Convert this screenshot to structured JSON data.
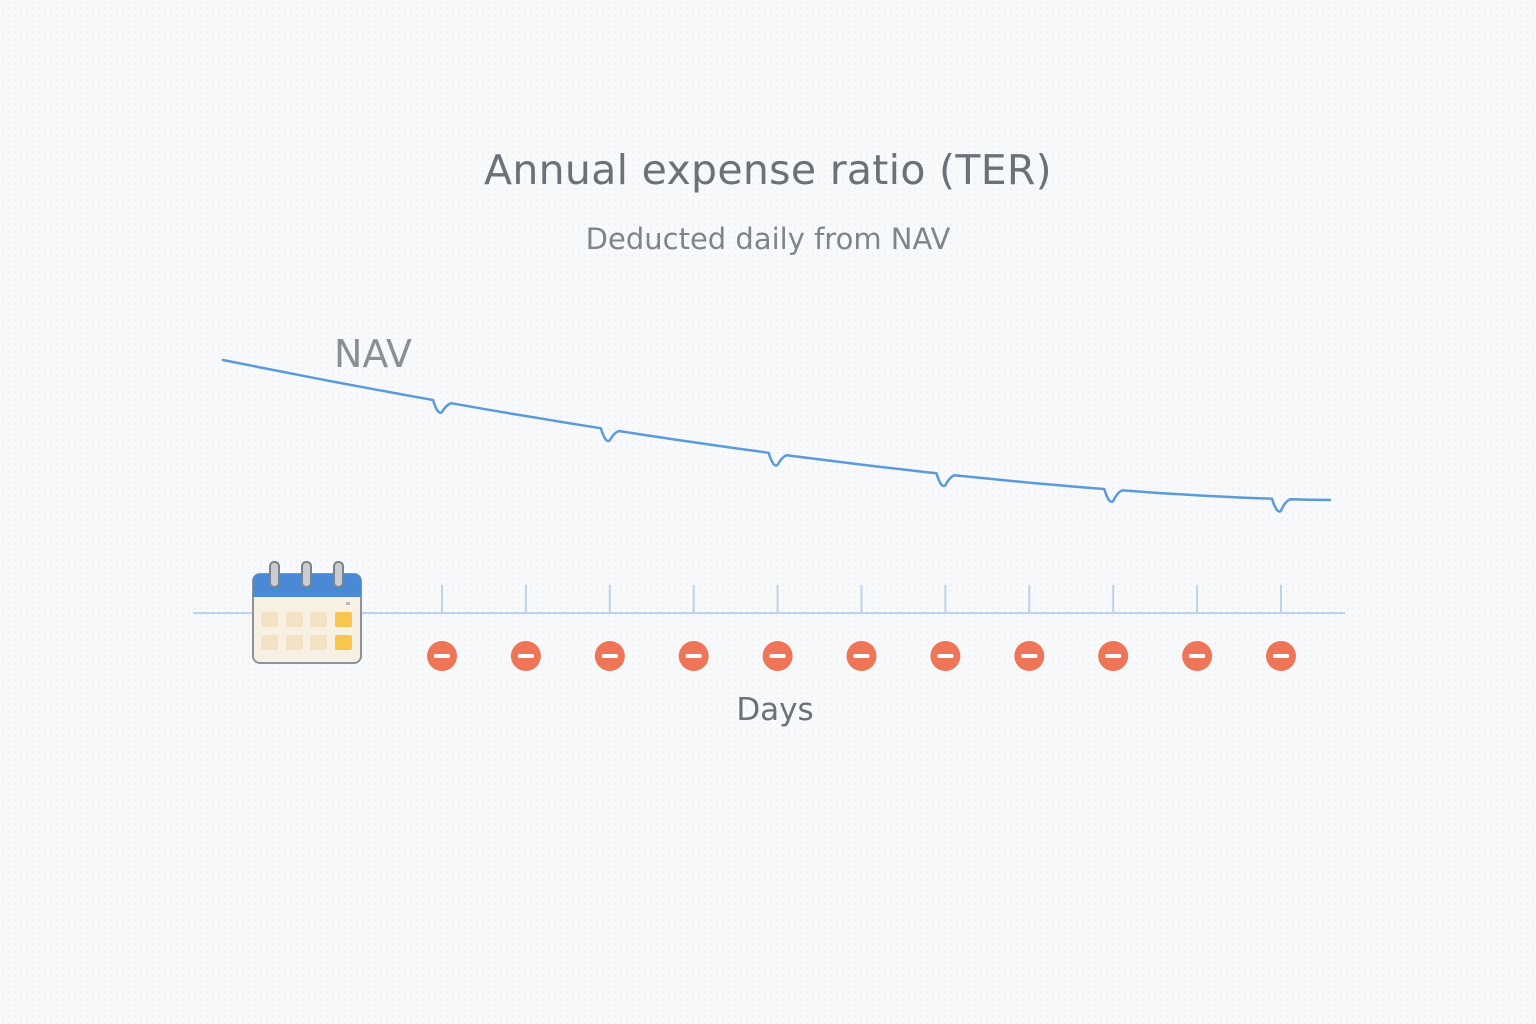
{
  "title": "Annual expense ratio (TER)",
  "subtitle": "Deducted daily from NAV",
  "series_label": "NAV",
  "axis_label": "Days",
  "colors": {
    "nav_line": "#5b9bdc",
    "axis_line": "#bcd3ec",
    "deduction": "#ee7558",
    "calendar_header": "#4a8ad4",
    "calendar_highlight": "#f7c64d"
  },
  "icons": {
    "calendar": "calendar-icon",
    "deduction": "minus-circle-icon"
  },
  "chart_data": {
    "type": "line",
    "x_unit": "days",
    "deduction_days": [
      1,
      2,
      3,
      4,
      5,
      6,
      7,
      8,
      9,
      10,
      11
    ],
    "nav_trend": "declining",
    "nav_dips_on_days": [
      1,
      3,
      5,
      7,
      9,
      11
    ]
  }
}
